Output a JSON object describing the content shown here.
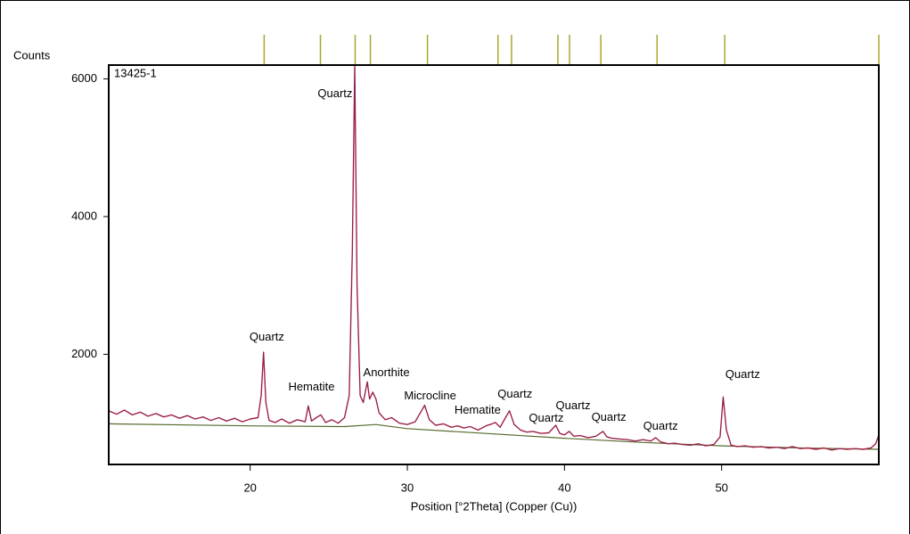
{
  "chart_data": {
    "type": "line",
    "y_label": "Counts",
    "x_label": "Position [°2Theta] (Copper (Cu))",
    "xlim": [
      11,
      60
    ],
    "ylim": [
      400,
      6200
    ],
    "xticks": [
      20,
      30,
      40,
      50
    ],
    "yticks": [
      2000,
      4000,
      6000
    ],
    "x": [
      11.0,
      11.5,
      12.0,
      12.5,
      13.0,
      13.5,
      14.0,
      14.5,
      15.0,
      15.5,
      16.0,
      16.5,
      17.0,
      17.5,
      18.0,
      18.5,
      19.0,
      19.5,
      20.0,
      20.5,
      20.7,
      20.85,
      21.0,
      21.2,
      21.6,
      22.0,
      22.5,
      23.0,
      23.5,
      23.7,
      23.9,
      24.2,
      24.5,
      24.8,
      25.2,
      25.6,
      26.0,
      26.3,
      26.5,
      26.65,
      26.8,
      27.0,
      27.2,
      27.45,
      27.6,
      27.8,
      28.0,
      28.2,
      28.6,
      29.0,
      29.5,
      30.0,
      30.5,
      30.9,
      31.1,
      31.4,
      31.8,
      32.3,
      32.8,
      33.2,
      33.6,
      34.0,
      34.5,
      35.0,
      35.4,
      35.6,
      35.9,
      36.2,
      36.5,
      36.8,
      37.2,
      37.6,
      38.0,
      38.5,
      39.0,
      39.45,
      39.7,
      40.0,
      40.3,
      40.6,
      41.0,
      41.5,
      42.0,
      42.45,
      42.7,
      43.0,
      43.5,
      44.0,
      44.5,
      45.0,
      45.5,
      45.8,
      46.1,
      46.6,
      47.0,
      47.5,
      48.0,
      48.5,
      49.0,
      49.5,
      49.9,
      50.1,
      50.3,
      50.6,
      51.0,
      51.5,
      52.0,
      52.5,
      53.0,
      53.5,
      54.0,
      54.5,
      55.0,
      55.5,
      56.0,
      56.5,
      57.0,
      57.5,
      58.0,
      58.5,
      59.0,
      59.5,
      59.8,
      60.0
    ],
    "series": [
      {
        "name": "13425-1",
        "color": "#d42020",
        "values": [
          1180,
          1130,
          1190,
          1120,
          1160,
          1100,
          1140,
          1090,
          1120,
          1070,
          1110,
          1060,
          1090,
          1040,
          1080,
          1030,
          1070,
          1020,
          1060,
          1080,
          1400,
          2030,
          1300,
          1040,
          1010,
          1060,
          1000,
          1050,
          1020,
          1250,
          1030,
          1080,
          1120,
          1010,
          1050,
          1000,
          1080,
          1400,
          3500,
          6200,
          3000,
          1400,
          1300,
          1600,
          1350,
          1450,
          1350,
          1150,
          1050,
          1080,
          1000,
          980,
          1020,
          1180,
          1260,
          1050,
          970,
          990,
          940,
          960,
          930,
          950,
          900,
          960,
          990,
          1010,
          940,
          1060,
          1180,
          980,
          900,
          870,
          880,
          850,
          860,
          970,
          850,
          830,
          880,
          810,
          820,
          790,
          810,
          880,
          800,
          780,
          770,
          760,
          740,
          760,
          740,
          790,
          730,
          700,
          710,
          690,
          680,
          700,
          670,
          690,
          800,
          1380,
          900,
          680,
          660,
          670,
          650,
          660,
          640,
          650,
          630,
          660,
          630,
          640,
          620,
          640,
          610,
          630,
          620,
          630,
          620,
          640,
          700,
          830
        ]
      }
    ],
    "background_line": {
      "color": "#556b2f",
      "x": [
        11,
        20,
        26,
        28,
        30,
        35,
        40,
        45,
        50,
        55,
        60
      ],
      "values": [
        990,
        960,
        950,
        980,
        920,
        850,
        780,
        720,
        670,
        640,
        620
      ]
    },
    "reference_peaks": {
      "color": "#a8a830",
      "x": [
        20.89,
        24.47,
        26.68,
        27.65,
        31.28,
        35.77,
        36.63,
        39.58,
        40.32,
        42.31,
        45.89,
        50.2,
        60.0
      ]
    },
    "annotations": [
      {
        "text": "Quartz",
        "x": 25.4,
        "y": 5780
      },
      {
        "text": "Quartz",
        "x": 21.06,
        "y": 2247
      },
      {
        "text": "Hematite",
        "x": 23.9,
        "y": 1519
      },
      {
        "text": "Anorthite",
        "x": 28.67,
        "y": 1727
      },
      {
        "text": "Microcline",
        "x": 31.45,
        "y": 1390
      },
      {
        "text": "Hematite",
        "x": 34.47,
        "y": 1182
      },
      {
        "text": "Quartz",
        "x": 36.85,
        "y": 1416
      },
      {
        "text": "Quartz",
        "x": 38.84,
        "y": 1065
      },
      {
        "text": "Quartz",
        "x": 40.55,
        "y": 1247
      },
      {
        "text": "Quartz",
        "x": 42.82,
        "y": 1078
      },
      {
        "text": "Quartz",
        "x": 46.11,
        "y": 948
      },
      {
        "text": "Quartz",
        "x": 51.34,
        "y": 1701
      }
    ]
  }
}
